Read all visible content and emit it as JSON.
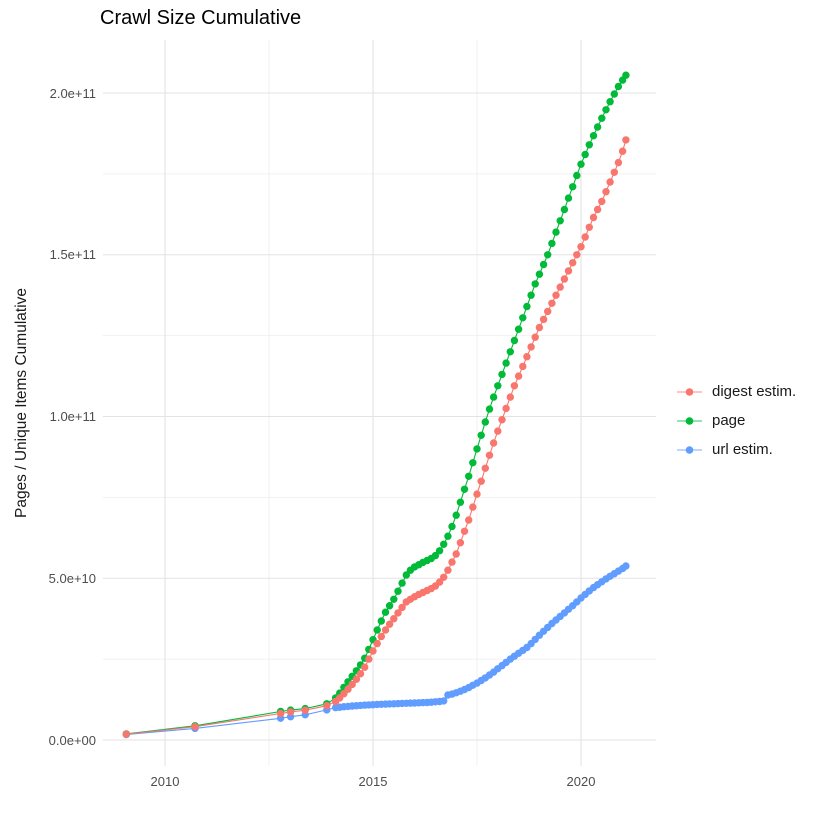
{
  "figure": {
    "title": "Crawl Size Cumulative",
    "ylabel": "Pages / Unique Items Cumulative"
  },
  "legend": {
    "entries": [
      {
        "id": "digest-estim",
        "label": "digest estim.",
        "color": "#F8766D"
      },
      {
        "id": "page",
        "label": "page",
        "color": "#00BA38"
      },
      {
        "id": "url-estim",
        "label": "url estim.",
        "color": "#619CFF"
      }
    ]
  },
  "chart_data": {
    "type": "scatter",
    "title": "Crawl Size Cumulative",
    "xlabel": "",
    "ylabel": "Pages / Unique Items Cumulative",
    "grid": true,
    "legend_position": "right",
    "units_note": "values_e9 are cumulative counts in billions (1e9); y axis shown in scientific notation",
    "x_domain": [
      2008.5,
      2021.8
    ],
    "y_domain_e9": [
      -8,
      216.5
    ],
    "x_ticks": {
      "values": [
        2010,
        2015,
        2020
      ],
      "labels": [
        "2010",
        "2015",
        "2020"
      ],
      "minor": [
        2012.5,
        2017.5
      ]
    },
    "y_ticks": {
      "values_e9": [
        0,
        50,
        100,
        150,
        200
      ],
      "labels": [
        "0.0e+00",
        "5.0e+10",
        "1.0e+11",
        "1.5e+11",
        "2.0e+11"
      ],
      "minor_e9": [
        25,
        75,
        125,
        175
      ]
    },
    "x": [
      2009.07,
      2010.72,
      2012.78,
      2013.02,
      2013.37,
      2013.89,
      2014.1,
      2014.2,
      2014.3,
      2014.4,
      2014.5,
      2014.6,
      2014.7,
      2014.8,
      2014.9,
      2015.0,
      2015.1,
      2015.2,
      2015.3,
      2015.4,
      2015.5,
      2015.6,
      2015.7,
      2015.8,
      2015.9,
      2016.0,
      2016.1,
      2016.2,
      2016.3,
      2016.4,
      2016.5,
      2016.6,
      2016.7,
      2016.8,
      2016.9,
      2017.0,
      2017.1,
      2017.2,
      2017.3,
      2017.4,
      2017.5,
      2017.6,
      2017.7,
      2017.8,
      2017.9,
      2018.0,
      2018.1,
      2018.2,
      2018.3,
      2018.4,
      2018.5,
      2018.6,
      2018.7,
      2018.8,
      2018.9,
      2019.0,
      2019.1,
      2019.2,
      2019.3,
      2019.4,
      2019.5,
      2019.6,
      2019.7,
      2019.8,
      2019.9,
      2020.0,
      2020.1,
      2020.2,
      2020.3,
      2020.4,
      2020.5,
      2020.6,
      2020.7,
      2020.8,
      2020.9,
      2021.0,
      2021.08
    ],
    "series": [
      {
        "name": "digest estim.",
        "color": "#F8766D",
        "values_e9": [
          1.8,
          4.1,
          8.2,
          8.7,
          9.2,
          10.6,
          11.9,
          13.0,
          14.3,
          15.7,
          17.2,
          18.8,
          20.5,
          22.5,
          25.0,
          27.5,
          29.8,
          32.0,
          34.0,
          35.8,
          37.5,
          39.3,
          41.0,
          42.7,
          43.5,
          44.3,
          45.0,
          45.6,
          46.2,
          46.8,
          47.6,
          48.8,
          50.3,
          52.5,
          55.0,
          57.5,
          61.0,
          64.5,
          68.0,
          72.0,
          76.0,
          80.0,
          84.0,
          88.0,
          91.8,
          95.5,
          99.0,
          102.5,
          106.0,
          109.5,
          112.5,
          115.5,
          118.5,
          121.5,
          124.5,
          127.5,
          130.0,
          132.5,
          135.0,
          137.5,
          140.0,
          142.5,
          145.0,
          147.5,
          150.0,
          152.5,
          155.5,
          158.5,
          161.5,
          164.0,
          166.5,
          169.5,
          172.5,
          175.5,
          178.5,
          182.0,
          185.5
        ]
      },
      {
        "name": "page",
        "color": "#00BA38",
        "values_e9": [
          1.9,
          4.4,
          8.8,
          9.25,
          9.7,
          11.2,
          13.0,
          14.5,
          16.3,
          18.0,
          19.7,
          21.4,
          23.2,
          25.3,
          28.0,
          31.0,
          34.0,
          36.8,
          39.5,
          41.5,
          43.5,
          46.0,
          48.5,
          51.0,
          52.5,
          53.5,
          54.2,
          54.9,
          55.5,
          56.1,
          57.0,
          58.5,
          60.5,
          63.0,
          66.0,
          69.5,
          73.5,
          77.5,
          81.5,
          85.7,
          90.0,
          94.2,
          98.3,
          102.3,
          106.0,
          109.5,
          113.0,
          116.5,
          120.0,
          123.5,
          127.0,
          130.5,
          134.0,
          137.5,
          141.0,
          144.0,
          147.0,
          150.0,
          153.5,
          157.0,
          160.5,
          164.0,
          167.5,
          171.0,
          174.5,
          178.0,
          181.0,
          184.0,
          186.8,
          189.5,
          192.2,
          194.8,
          197.3,
          199.7,
          202.0,
          204.0,
          205.5
        ]
      },
      {
        "name": "url estim.",
        "color": "#619CFF",
        "values_e9": [
          1.7,
          3.6,
          6.7,
          7.2,
          7.8,
          9.3,
          10.0,
          10.15,
          10.3,
          10.4,
          10.5,
          10.6,
          10.7,
          10.8,
          10.85,
          10.9,
          11.0,
          11.05,
          11.1,
          11.15,
          11.2,
          11.25,
          11.3,
          11.35,
          11.4,
          11.45,
          11.5,
          11.55,
          11.6,
          11.7,
          11.8,
          11.9,
          12.1,
          13.9,
          14.2,
          14.6,
          15.1,
          15.6,
          16.2,
          16.9,
          17.6,
          18.4,
          19.2,
          20.1,
          21.0,
          22.0,
          23.0,
          24.0,
          25.0,
          25.9,
          26.8,
          27.7,
          28.6,
          29.8,
          31.1,
          32.4,
          33.6,
          34.8,
          36.0,
          37.1,
          38.2,
          39.3,
          40.4,
          41.5,
          42.7,
          43.9,
          45.0,
          46.1,
          47.1,
          48.0,
          48.9,
          49.8,
          50.6,
          51.4,
          52.2,
          53.0,
          53.8
        ]
      }
    ]
  }
}
